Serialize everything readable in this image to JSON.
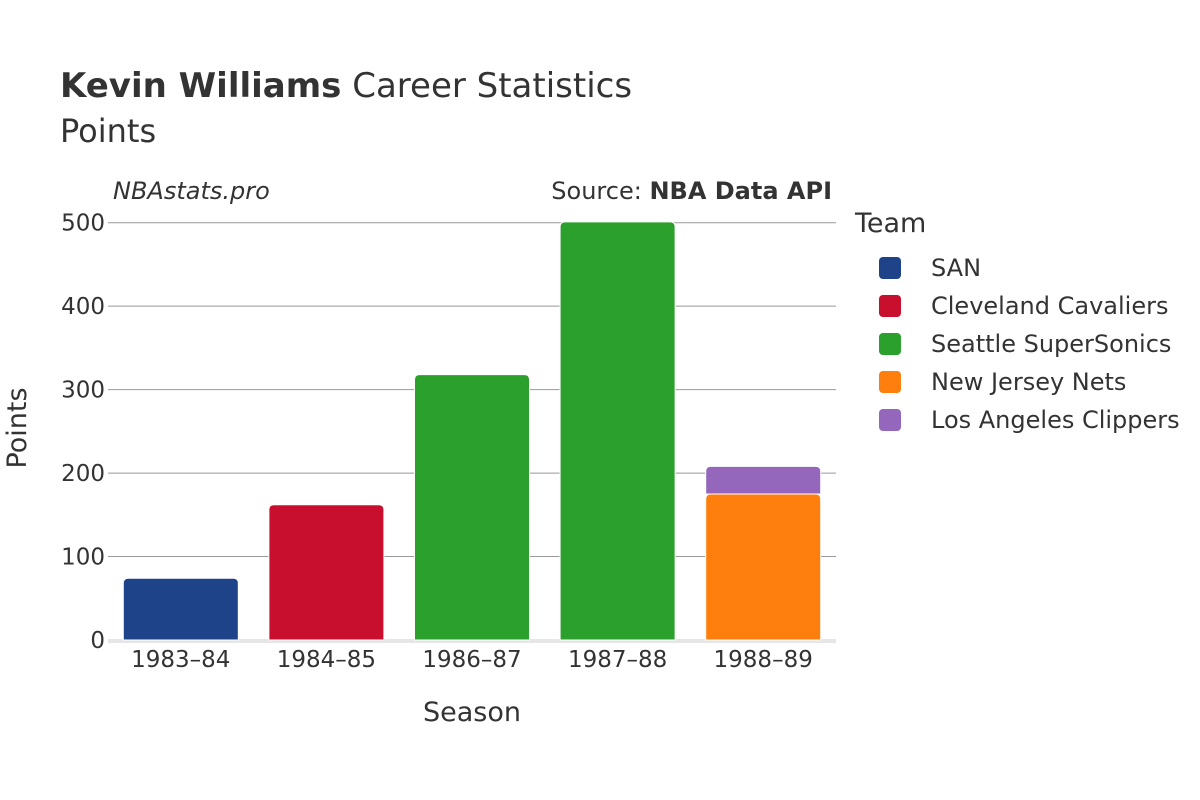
{
  "header": {
    "title_name": "Kevin Williams",
    "title_rest": " Career Statistics",
    "subtitle": "Points",
    "watermark": "NBAstats.pro",
    "source_prefix": "Source: ",
    "source_name": "NBA Data API"
  },
  "chart_data": {
    "type": "bar",
    "stacked": true,
    "xlabel": "Season",
    "ylabel": "Points",
    "ylim": [
      0,
      520
    ],
    "yticks": [
      0,
      100,
      200,
      300,
      400,
      500
    ],
    "grid": true,
    "categories": [
      "1983–84",
      "1984–85",
      "1986–87",
      "1987–88",
      "1988–89"
    ],
    "legend": {
      "title": "Team",
      "placement": "right"
    },
    "series": [
      {
        "name": "SAN",
        "color": "#1f4389",
        "values": [
          74,
          0,
          0,
          0,
          0
        ]
      },
      {
        "name": "Cleveland Cavaliers",
        "color": "#c8102e",
        "values": [
          0,
          162,
          0,
          0,
          0
        ]
      },
      {
        "name": "Seattle SuperSonics",
        "color": "#2ca02c",
        "values": [
          0,
          0,
          318,
          501,
          0
        ]
      },
      {
        "name": "New Jersey Nets",
        "color": "#ff7f0e",
        "values": [
          0,
          0,
          0,
          0,
          175
        ]
      },
      {
        "name": "Los Angeles Clippers",
        "color": "#9467bd",
        "values": [
          0,
          0,
          0,
          0,
          33
        ]
      }
    ]
  }
}
